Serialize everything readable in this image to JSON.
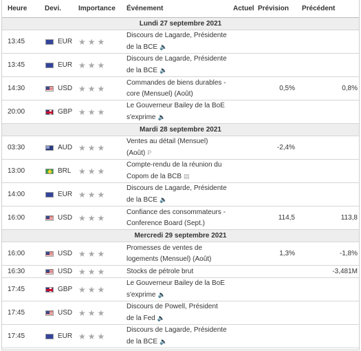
{
  "columns": {
    "time": "Heure",
    "currency": "Devi.",
    "importance": "Importance",
    "event": "Événement",
    "actual": "Actuel",
    "forecast": "Prévision",
    "previous": "Précédent"
  },
  "days": [
    {
      "label": "Lundi 27 septembre 2021",
      "events": [
        {
          "time": "13:45",
          "flag": "eu",
          "currency": "EUR",
          "stars": 3,
          "line1": "Discours de Lagarde, Présidente",
          "line2": "de la BCE",
          "icon": "speaker-icon",
          "actual": "",
          "forecast": "",
          "previous": ""
        },
        {
          "time": "13:45",
          "flag": "eu",
          "currency": "EUR",
          "stars": 3,
          "line1": "Discours de Lagarde, Présidente",
          "line2": "de la BCE",
          "icon": "speaker-icon",
          "actual": "",
          "forecast": "",
          "previous": ""
        },
        {
          "time": "14:30",
          "flag": "us",
          "currency": "USD",
          "stars": 3,
          "line1": "Commandes de biens durables -",
          "line2": "core (Mensuel) (Août)",
          "icon": "",
          "actual": "",
          "forecast": "0,5%",
          "previous": "0,8%"
        },
        {
          "time": "20:00",
          "flag": "gb",
          "currency": "GBP",
          "stars": 3,
          "line1": "Le Gouverneur Bailey de la BoE",
          "line2": "s'exprime",
          "icon": "speaker-icon",
          "actual": "",
          "forecast": "",
          "previous": ""
        }
      ]
    },
    {
      "label": "Mardi 28 septembre 2021",
      "events": [
        {
          "time": "03:30",
          "flag": "au",
          "currency": "AUD",
          "stars": 3,
          "line1": "Ventes au détail (Mensuel)",
          "line2": "(Août)",
          "icon": "preliminary-icon",
          "actual": "",
          "forecast": "-2,4%",
          "previous": ""
        },
        {
          "time": "13:00",
          "flag": "br",
          "currency": "BRL",
          "stars": 3,
          "line1": "Compte-rendu de la réunion du",
          "line2": "Copom de la BCB",
          "icon": "document-icon",
          "actual": "",
          "forecast": "",
          "previous": ""
        },
        {
          "time": "14:00",
          "flag": "eu",
          "currency": "EUR",
          "stars": 3,
          "line1": "Discours de Lagarde, Présidente",
          "line2": "de la BCE",
          "icon": "speaker-icon",
          "actual": "",
          "forecast": "",
          "previous": ""
        },
        {
          "time": "16:00",
          "flag": "us",
          "currency": "USD",
          "stars": 3,
          "line1": "Confiance des consommateurs -",
          "line2": "Conference Board (Sept.)",
          "icon": "",
          "actual": "",
          "forecast": "114,5",
          "previous": "113,8"
        }
      ]
    },
    {
      "label": "Mercredi 29 septembre 2021",
      "events": [
        {
          "time": "16:00",
          "flag": "us",
          "currency": "USD",
          "stars": 3,
          "line1": "Promesses de ventes de",
          "line2": "logements (Mensuel) (Août)",
          "icon": "",
          "actual": "",
          "forecast": "1,3%",
          "previous": "-1,8%"
        },
        {
          "time": "16:30",
          "flag": "us",
          "currency": "USD",
          "stars": 3,
          "line1": "Stocks de pétrole brut",
          "line2": "",
          "icon": "",
          "actual": "",
          "forecast": "",
          "previous": "-3,481M"
        },
        {
          "time": "17:45",
          "flag": "gb",
          "currency": "GBP",
          "stars": 3,
          "line1": "Le Gouverneur Bailey de la BoE",
          "line2": "s'exprime",
          "icon": "speaker-icon",
          "actual": "",
          "forecast": "",
          "previous": ""
        },
        {
          "time": "17:45",
          "flag": "us",
          "currency": "USD",
          "stars": 3,
          "line1": "Discours de Powell, Président",
          "line2": "de la Fed",
          "icon": "speaker-icon",
          "actual": "",
          "forecast": "",
          "previous": ""
        },
        {
          "time": "17:45",
          "flag": "eu",
          "currency": "EUR",
          "stars": 3,
          "line1": "Discours de Lagarde, Présidente",
          "line2": "de la BCE",
          "icon": "speaker-icon",
          "actual": "",
          "forecast": "",
          "previous": ""
        }
      ]
    }
  ],
  "icons": {
    "speaker-icon": "🔈",
    "document-icon": "▤",
    "preliminary-icon": "P"
  }
}
